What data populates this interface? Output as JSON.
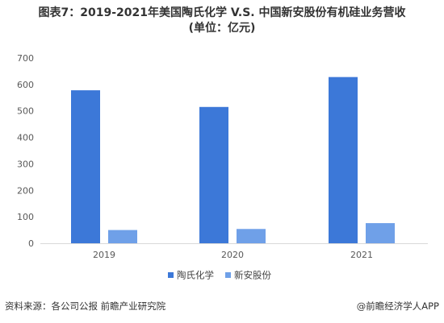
{
  "chart_data": {
    "type": "bar",
    "title": "图表7：2019-2021年美国陶氏化学 V.S. 中国新安股份有机硅业务营收",
    "subtitle": "(单位：亿元)",
    "categories": [
      "2019",
      "2020",
      "2021"
    ],
    "series": [
      {
        "name": "陶氏化学",
        "values": [
          578,
          515,
          628
        ],
        "color": "#3c78d8"
      },
      {
        "name": "新安股份",
        "values": [
          50,
          54,
          76
        ],
        "color": "#6fa0e8"
      }
    ],
    "ylim": [
      0,
      700
    ],
    "yticks": [
      "0",
      "100",
      "200",
      "300",
      "400",
      "500",
      "600",
      "700"
    ],
    "grid": false,
    "legend_position": "bottom"
  },
  "footer": {
    "source": "资料来源：各公司公报 前瞻产业研究院",
    "brand": "@前瞻经济学人APP"
  }
}
